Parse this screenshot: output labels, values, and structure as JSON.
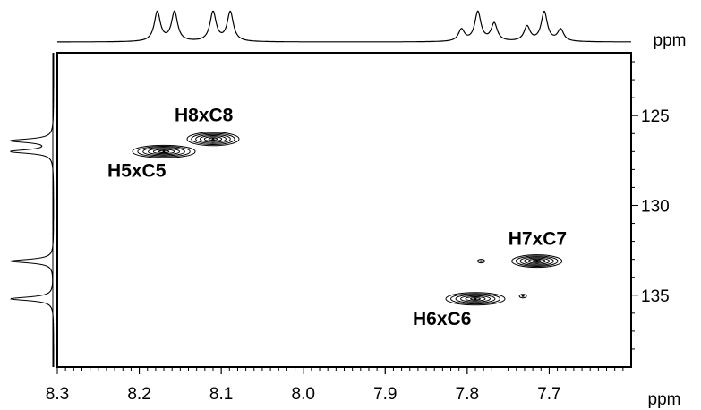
{
  "chart_data": {
    "type": "scatter",
    "title": "",
    "x_axis": {
      "label": "ppm",
      "range": [
        8.3,
        7.6
      ],
      "ticks": [
        "8.3",
        "8.2",
        "8.1",
        "8.0",
        "7.9",
        "7.8",
        "7.7"
      ],
      "tick_values": [
        8.3,
        8.2,
        8.1,
        8.0,
        7.9,
        7.8,
        7.7
      ]
    },
    "y_axis": {
      "label": "ppm",
      "range": [
        121.5,
        139
      ],
      "ticks": [
        "125",
        "130",
        "135"
      ],
      "tick_values": [
        125,
        130,
        135
      ]
    },
    "grid": false,
    "series": [
      {
        "name": "H5xC5",
        "x": 8.17,
        "y": 127.0
      },
      {
        "name": "H8xC8",
        "x": 8.11,
        "y": 126.3
      },
      {
        "name": "H7xC7",
        "x": 7.715,
        "y": 133.1
      },
      {
        "name": "H6xC6",
        "x": 7.79,
        "y": 135.2
      }
    ],
    "minor_peaks": [
      {
        "x": 7.783,
        "y": 133.1
      },
      {
        "x": 7.732,
        "y": 135.05
      }
    ],
    "top_projection_peaks_ppm": [
      8.178,
      8.157,
      8.11,
      8.089,
      7.807,
      7.787,
      7.767,
      7.727,
      7.706,
      7.686
    ],
    "side_projection_peaks_ppm": [
      126.4,
      127.0,
      133.1,
      135.2
    ]
  }
}
